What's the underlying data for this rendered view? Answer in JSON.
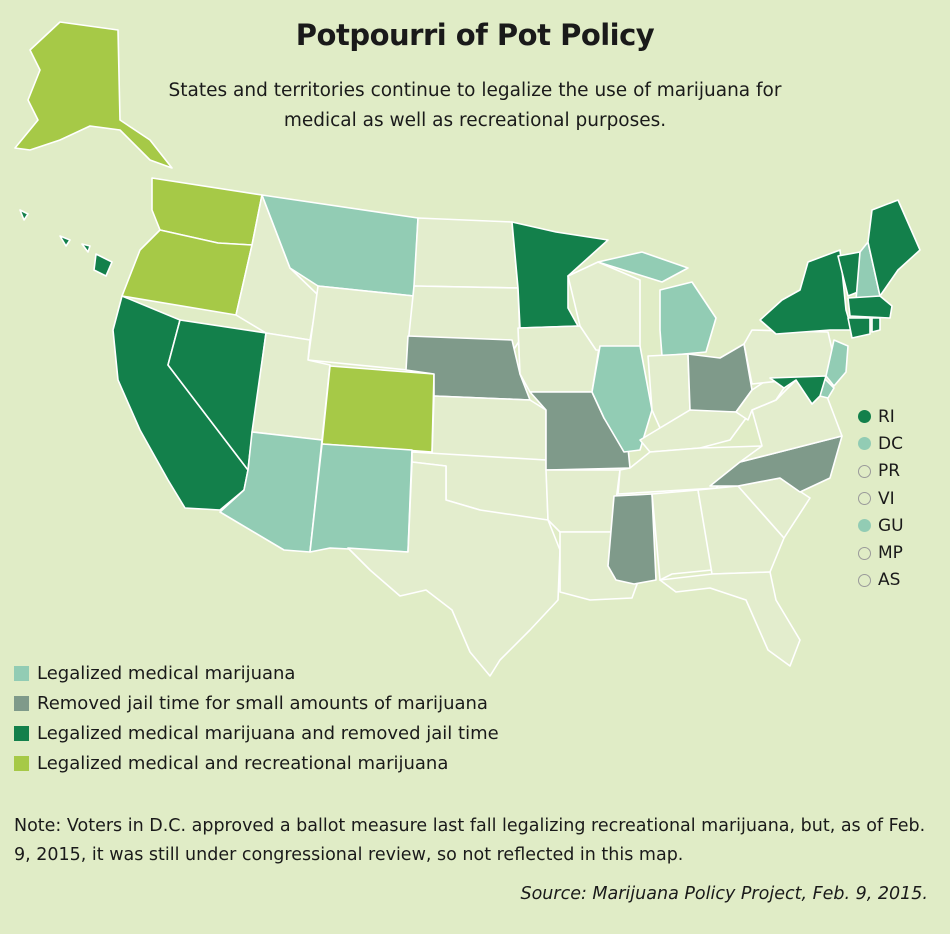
{
  "title": "Potpourri of Pot Policy",
  "subtitle": "States and territories continue to legalize the use of marijuana for medical as well as recreational purposes.",
  "colors": {
    "background": "#e0ecc6",
    "none": "#e3edcd",
    "border": "#ffffff",
    "medical": "#92ccb4",
    "decriminalized": "#7f9a8a",
    "medical_and_decriminalized": "#13804b",
    "recreational": "#a6c947"
  },
  "legend": [
    {
      "label": "Legalized medical marijuana",
      "category": "medical"
    },
    {
      "label": "Removed jail time for small amounts of marijuana",
      "category": "decriminalized"
    },
    {
      "label": "Legalized medical marijuana and removed jail time",
      "category": "medical_and_decriminalized"
    },
    {
      "label": "Legalized medical and recreational marijuana",
      "category": "recreational"
    }
  ],
  "states": [
    {
      "abbr": "WA",
      "category": "recreational"
    },
    {
      "abbr": "OR",
      "category": "recreational"
    },
    {
      "abbr": "CA",
      "category": "medical_and_decriminalized"
    },
    {
      "abbr": "NV",
      "category": "medical_and_decriminalized"
    },
    {
      "abbr": "ID",
      "category": "none"
    },
    {
      "abbr": "MT",
      "category": "medical"
    },
    {
      "abbr": "WY",
      "category": "none"
    },
    {
      "abbr": "UT",
      "category": "none"
    },
    {
      "abbr": "AZ",
      "category": "medical"
    },
    {
      "abbr": "CO",
      "category": "recreational"
    },
    {
      "abbr": "NM",
      "category": "medical"
    },
    {
      "abbr": "ND",
      "category": "none"
    },
    {
      "abbr": "SD",
      "category": "none"
    },
    {
      "abbr": "NE",
      "category": "decriminalized"
    },
    {
      "abbr": "KS",
      "category": "none"
    },
    {
      "abbr": "OK",
      "category": "none"
    },
    {
      "abbr": "TX",
      "category": "none"
    },
    {
      "abbr": "MN",
      "category": "medical_and_decriminalized"
    },
    {
      "abbr": "IA",
      "category": "none"
    },
    {
      "abbr": "MO",
      "category": "decriminalized"
    },
    {
      "abbr": "AR",
      "category": "none"
    },
    {
      "abbr": "LA",
      "category": "none"
    },
    {
      "abbr": "WI",
      "category": "none"
    },
    {
      "abbr": "IL",
      "category": "medical"
    },
    {
      "abbr": "MI",
      "category": "medical"
    },
    {
      "abbr": "IN",
      "category": "none"
    },
    {
      "abbr": "OH",
      "category": "decriminalized"
    },
    {
      "abbr": "KY",
      "category": "none"
    },
    {
      "abbr": "TN",
      "category": "none"
    },
    {
      "abbr": "MS",
      "category": "decriminalized"
    },
    {
      "abbr": "AL",
      "category": "none"
    },
    {
      "abbr": "GA",
      "category": "none"
    },
    {
      "abbr": "FL",
      "category": "none"
    },
    {
      "abbr": "SC",
      "category": "none"
    },
    {
      "abbr": "NC",
      "category": "decriminalized"
    },
    {
      "abbr": "VA",
      "category": "none"
    },
    {
      "abbr": "WV",
      "category": "none"
    },
    {
      "abbr": "PA",
      "category": "none"
    },
    {
      "abbr": "NY",
      "category": "medical_and_decriminalized"
    },
    {
      "abbr": "VT",
      "category": "medical_and_decriminalized"
    },
    {
      "abbr": "NH",
      "category": "medical"
    },
    {
      "abbr": "ME",
      "category": "medical_and_decriminalized"
    },
    {
      "abbr": "MA",
      "category": "medical_and_decriminalized"
    },
    {
      "abbr": "CT",
      "category": "medical_and_decriminalized"
    },
    {
      "abbr": "RI",
      "category": "medical_and_decriminalized"
    },
    {
      "abbr": "NJ",
      "category": "medical"
    },
    {
      "abbr": "DE",
      "category": "medical"
    },
    {
      "abbr": "MD",
      "category": "medical_and_decriminalized"
    },
    {
      "abbr": "AK",
      "category": "recreational"
    },
    {
      "abbr": "HI",
      "category": "medical_and_decriminalized"
    }
  ],
  "territories": [
    {
      "label": "RI",
      "category": "medical_and_decriminalized"
    },
    {
      "label": "DC",
      "category": "medical"
    },
    {
      "label": "PR",
      "category": "none"
    },
    {
      "label": "VI",
      "category": "none"
    },
    {
      "label": "GU",
      "category": "medical"
    },
    {
      "label": "MP",
      "category": "none"
    },
    {
      "label": "AS",
      "category": "none"
    }
  ],
  "note": "Note: Voters in D.C. approved a ballot measure last fall legalizing recreational marijuana, but, as of Feb. 9, 2015, it was still under congressional review, so not reflected in this map.",
  "source": "Source: Marijuana Policy Project, Feb. 9, 2015."
}
